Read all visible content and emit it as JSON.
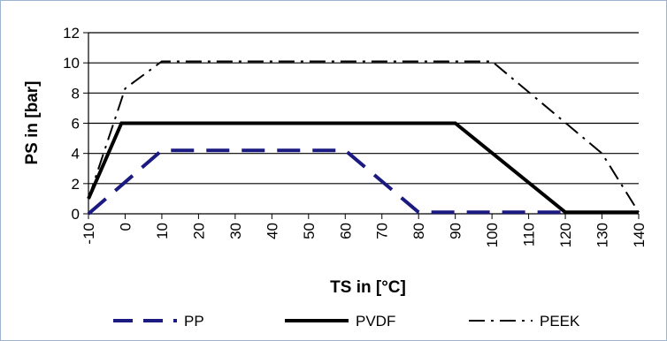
{
  "chart_data": {
    "type": "line",
    "title": "",
    "xlabel": "TS in [°C]",
    "ylabel": "PS in [bar]",
    "xlim": [
      -10,
      140
    ],
    "ylim": [
      0,
      12
    ],
    "x_ticks": [
      "-10",
      "0",
      "10",
      "20",
      "30",
      "40",
      "50",
      "60",
      "70",
      "80",
      "90",
      "100",
      "110",
      "120",
      "130",
      "140"
    ],
    "y_ticks": [
      "0",
      "2",
      "4",
      "6",
      "8",
      "10",
      "12"
    ],
    "grid": "horizontal",
    "legend_position": "bottom",
    "series": [
      {
        "name": "PP",
        "color": "#1a1a80",
        "style": "long-dash",
        "x": [
          -10,
          10,
          60,
          80,
          120
        ],
        "y": [
          0,
          4.2,
          4.2,
          0.1,
          0.1
        ]
      },
      {
        "name": "PVDF",
        "color": "#000000",
        "style": "solid",
        "x": [
          -10,
          -1,
          90,
          120,
          140
        ],
        "y": [
          1,
          6,
          6,
          0.1,
          0.1
        ]
      },
      {
        "name": "PEEK",
        "color": "#000000",
        "style": "dash-dot",
        "x": [
          -10,
          0,
          10,
          100,
          130,
          140
        ],
        "y": [
          1,
          8.3,
          10.1,
          10.1,
          4,
          0.1
        ]
      }
    ]
  }
}
